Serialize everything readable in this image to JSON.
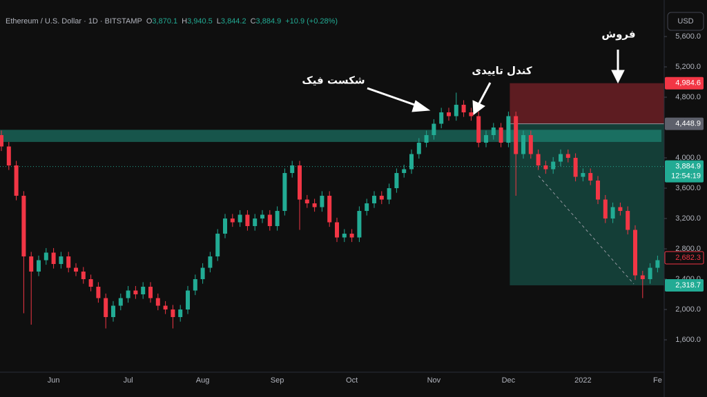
{
  "chart_data": {
    "type": "candlestick",
    "header": {
      "symbol": "Ethereum / U.S. Dollar · 1D · BITSTAMP",
      "o": "O",
      "open": "3,870.1",
      "h": "H",
      "high": "3,940.5",
      "l": "L",
      "low": "3,844.2",
      "c": "C",
      "close": "3,884.9",
      "change": "+10.9 (+0.28%)"
    },
    "currency": "USD",
    "annotations": [
      "فروش",
      "کندل تاییدی",
      "شکست فیک"
    ],
    "up_color": "#22ab94",
    "down_color": "#f23645",
    "ylim": [
      1173,
      6082
    ],
    "yticks": [
      {
        "value": 5600,
        "label": "5,600.0"
      },
      {
        "value": 5200,
        "label": "5,200.0"
      },
      {
        "value": 4800,
        "label": "4,800.0"
      },
      {
        "value": 4000,
        "label": "4,000.0"
      },
      {
        "value": 3600,
        "label": "3,600.0"
      },
      {
        "value": 3200,
        "label": "3,200.0"
      },
      {
        "value": 2800,
        "label": "2,800.0"
      },
      {
        "value": 2400,
        "label": "2,400.0"
      },
      {
        "value": 2000,
        "label": "2,000.0"
      },
      {
        "value": 1600,
        "label": "1,600.0"
      }
    ],
    "price_labels": [
      {
        "value": 4984.6,
        "label": "4,984.6",
        "color": "#f23645"
      },
      {
        "value": 4448.9,
        "label": "4,448.9",
        "color": "#5d606b"
      },
      {
        "value": 3884.9,
        "label": "3,884.9",
        "sublabel": "12:54:19",
        "color": "#22ab94"
      },
      {
        "value": 2682.3,
        "label": "2,682.3",
        "color": "#f23645"
      },
      {
        "value": 2318.7,
        "label": "2,318.7",
        "color": "#22ab94"
      }
    ],
    "zone": [
      4210,
      4370
    ],
    "categories": [
      null,
      null,
      null,
      null,
      null,
      null,
      null,
      "Jun",
      null,
      null,
      null,
      null,
      null,
      null,
      null,
      null,
      null,
      "Jul",
      null,
      null,
      null,
      null,
      null,
      null,
      null,
      null,
      null,
      "Aug",
      null,
      null,
      null,
      null,
      null,
      null,
      null,
      null,
      null,
      "Sep",
      null,
      null,
      null,
      null,
      null,
      null,
      null,
      null,
      null,
      "Oct",
      null,
      null,
      null,
      null,
      null,
      null,
      null,
      null,
      null,
      null,
      "Nov",
      null,
      null,
      null,
      null,
      null,
      null,
      null,
      null,
      null,
      "Dec",
      null,
      null,
      null,
      null,
      null,
      null,
      null,
      null,
      null,
      "2022",
      null,
      null,
      null,
      null,
      null,
      null,
      null,
      null,
      null,
      "Fe"
    ],
    "open": [
      4300,
      4150,
      3900,
      3500,
      2700,
      2500,
      2650,
      2750,
      2600,
      2700,
      2550,
      2500,
      2400,
      2300,
      2150,
      1900,
      2050,
      2150,
      2250,
      2200,
      2300,
      2150,
      2050,
      2000,
      1900,
      2000,
      2250,
      2400,
      2550,
      2700,
      3000,
      3200,
      3150,
      3250,
      3100,
      3200,
      3250,
      3100,
      3300,
      3800,
      3900,
      3450,
      3400,
      3350,
      3500,
      3150,
      2950,
      3000,
      2950,
      3300,
      3400,
      3500,
      3450,
      3600,
      3800,
      3850,
      4050,
      4200,
      4300,
      4450,
      4600,
      4550,
      4700,
      4600,
      4550,
      4200,
      4300,
      4400,
      4200,
      4550,
      4050,
      4300,
      4050,
      3900,
      3850,
      3950,
      4050,
      4000,
      3750,
      3800,
      3700,
      3450,
      3200,
      3350,
      3300,
      3050,
      2450,
      2400,
      2550
    ],
    "high": [
      4360,
      4210,
      3960,
      3560,
      2760,
      2710,
      2810,
      2810,
      2760,
      2760,
      2610,
      2560,
      2460,
      2360,
      2210,
      2110,
      2210,
      2310,
      2310,
      2360,
      2360,
      2210,
      2110,
      2060,
      2060,
      2310,
      2460,
      2610,
      2760,
      3060,
      3260,
      3260,
      3310,
      3310,
      3260,
      3310,
      3310,
      3360,
      3860,
      3960,
      3960,
      3510,
      3460,
      3560,
      3560,
      3210,
      3060,
      3060,
      3360,
      3460,
      3560,
      3560,
      3660,
      3860,
      3910,
      4110,
      4260,
      4360,
      4510,
      4660,
      4660,
      4860,
      4760,
      4660,
      4610,
      4360,
      4460,
      4460,
      4610,
      4610,
      4360,
      4360,
      4110,
      3960,
      4010,
      4110,
      4110,
      4060,
      3860,
      3860,
      3760,
      3510,
      3410,
      3410,
      3360,
      3110,
      2510,
      2610,
      2710
    ],
    "low": [
      4090,
      3840,
      3440,
      1950,
      1800,
      2440,
      2590,
      2540,
      2540,
      2490,
      2440,
      2340,
      2240,
      2090,
      1750,
      1840,
      1990,
      2090,
      2140,
      2140,
      2090,
      1990,
      1940,
      1750,
      1840,
      1940,
      2190,
      2340,
      2490,
      2640,
      2940,
      3090,
      3090,
      3040,
      3040,
      3140,
      3040,
      3040,
      3240,
      3740,
      3050,
      3340,
      3290,
      3290,
      3090,
      2890,
      2890,
      2890,
      2890,
      3240,
      3340,
      3390,
      3390,
      3540,
      3740,
      3790,
      3990,
      4140,
      4240,
      4390,
      4490,
      4490,
      4540,
      4490,
      4140,
      4140,
      4240,
      4140,
      4140,
      3500,
      3990,
      3990,
      3840,
      3790,
      3790,
      3890,
      3940,
      3690,
      3690,
      3640,
      3390,
      3140,
      3140,
      3240,
      2990,
      2390,
      2150,
      2340,
      2490
    ],
    "close": [
      4150,
      3900,
      3500,
      2700,
      2500,
      2650,
      2750,
      2600,
      2700,
      2550,
      2500,
      2400,
      2300,
      2150,
      1900,
      2050,
      2150,
      2250,
      2200,
      2300,
      2150,
      2050,
      2000,
      1900,
      2000,
      2250,
      2400,
      2550,
      2700,
      3000,
      3200,
      3150,
      3250,
      3100,
      3200,
      3250,
      3100,
      3300,
      3800,
      3900,
      3450,
      3400,
      3350,
      3500,
      3150,
      2950,
      3000,
      2950,
      3300,
      3400,
      3500,
      3450,
      3600,
      3800,
      3850,
      4050,
      4200,
      4300,
      4450,
      4600,
      4550,
      4700,
      4600,
      4550,
      4200,
      4300,
      4400,
      4200,
      4550,
      4050,
      4300,
      4050,
      3900,
      3850,
      3950,
      4050,
      4000,
      3750,
      3800,
      3700,
      3450,
      3200,
      3350,
      3300,
      3050,
      2450,
      2400,
      2550,
      2650
    ]
  }
}
